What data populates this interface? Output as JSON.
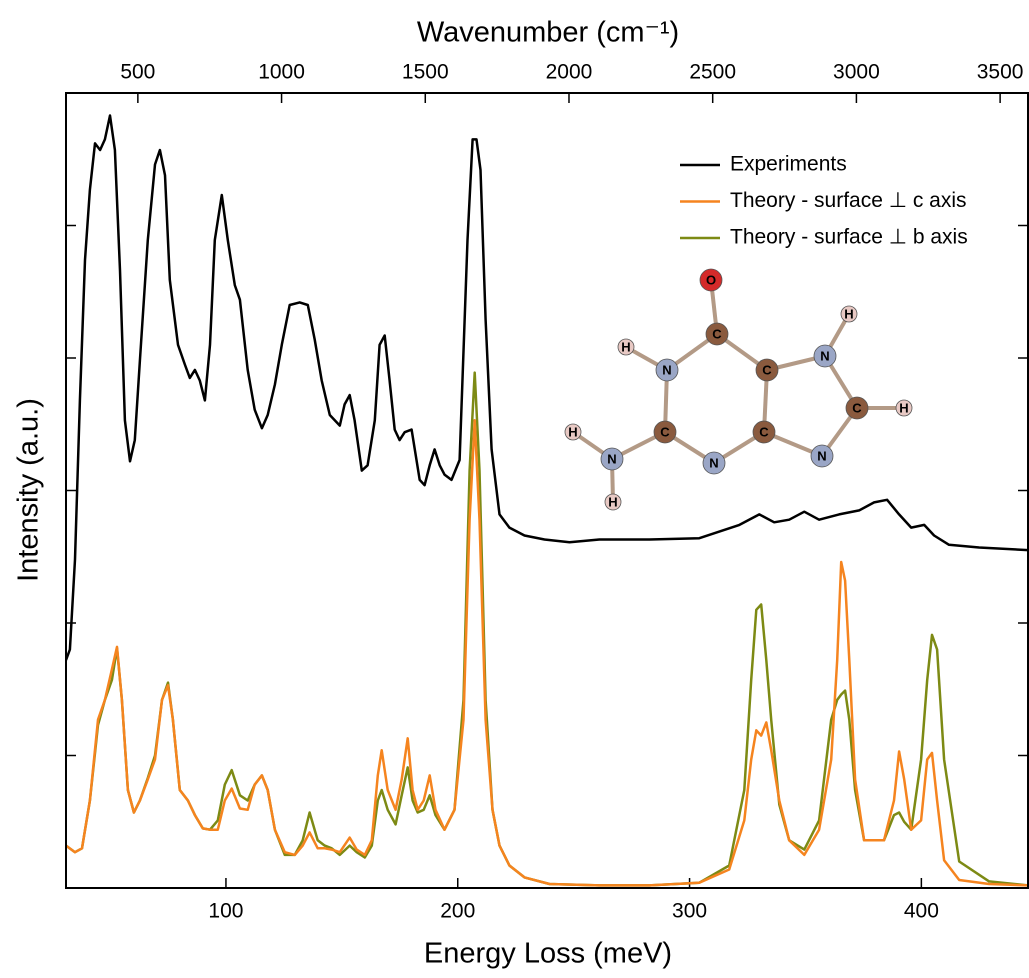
{
  "chart_data": {
    "type": "line",
    "xlabel": "Energy Loss (meV)",
    "ylabel": "Intensity (a.u.)",
    "x2label": "Wavenumber (cm⁻¹)",
    "xlim": [
      31,
      446
    ],
    "xticks": [
      100,
      200,
      300,
      400
    ],
    "x2lim": [
      250,
      3597
    ],
    "x2ticks": [
      500,
      1000,
      1500,
      2000,
      2500,
      3000,
      3500
    ],
    "ylim": [
      0,
      6
    ],
    "yticks": [
      1,
      2,
      3,
      4,
      5
    ],
    "legend": "upper right",
    "series": [
      {
        "name": "Experiments",
        "color": "#000000",
        "x": [
          31.0,
          32.7,
          34.9,
          37.0,
          39.2,
          41.3,
          43.5,
          45.7,
          47.8,
          50.0,
          52.1,
          54.3,
          56.4,
          58.6,
          60.7,
          62.9,
          66.3,
          69.4,
          71.5,
          73.7,
          75.8,
          79.3,
          82.3,
          84.4,
          86.6,
          88.7,
          90.9,
          93.1,
          95.2,
          98.2,
          100.8,
          103.8,
          106.0,
          109.4,
          112.4,
          115.5,
          118.0,
          121.1,
          124.1,
          127.5,
          131.8,
          135.3,
          138.3,
          141.3,
          144.8,
          149.1,
          151.2,
          153.4,
          155.5,
          158.6,
          161.1,
          164.2,
          166.3,
          168.5,
          170.6,
          172.8,
          174.9,
          177.1,
          180.1,
          183.6,
          185.7,
          187.9,
          190.0,
          192.2,
          194.3,
          197.3,
          200.8,
          204.2,
          206.4,
          208.1,
          209.8,
          212.0,
          214.6,
          218.0,
          222.3,
          228.8,
          237.4,
          248.2,
          261.1,
          282.7,
          304.2,
          321.5,
          330.1,
          336.5,
          343.0,
          349.5,
          355.9,
          364.5,
          373.2,
          379.6,
          385.2,
          390.4,
          395.6,
          401.2,
          405.5,
          411.9,
          424.9,
          446.0
        ],
        "values": [
          1.72,
          1.8,
          2.48,
          3.68,
          4.74,
          5.27,
          5.62,
          5.57,
          5.65,
          5.83,
          5.57,
          4.66,
          3.53,
          3.22,
          3.38,
          3.98,
          4.89,
          5.46,
          5.57,
          5.38,
          4.59,
          4.1,
          3.95,
          3.85,
          3.91,
          3.83,
          3.68,
          4.1,
          4.89,
          5.23,
          4.89,
          4.55,
          4.44,
          3.91,
          3.61,
          3.47,
          3.57,
          3.8,
          4.1,
          4.4,
          4.42,
          4.4,
          4.14,
          3.83,
          3.57,
          3.49,
          3.65,
          3.72,
          3.53,
          3.15,
          3.19,
          3.53,
          4.1,
          4.17,
          3.83,
          3.46,
          3.38,
          3.44,
          3.46,
          3.08,
          3.04,
          3.19,
          3.31,
          3.19,
          3.12,
          3.08,
          3.23,
          4.89,
          5.65,
          5.65,
          5.42,
          4.29,
          3.31,
          2.82,
          2.72,
          2.66,
          2.63,
          2.61,
          2.63,
          2.63,
          2.64,
          2.74,
          2.82,
          2.76,
          2.78,
          2.84,
          2.78,
          2.82,
          2.85,
          2.91,
          2.93,
          2.82,
          2.72,
          2.74,
          2.66,
          2.59,
          2.57,
          2.55
        ]
      },
      {
        "name": "Theory - surface ⊥ c axis",
        "color": "#f5841f",
        "x": [
          31.0,
          34.9,
          37.9,
          41.3,
          44.8,
          47.8,
          50.8,
          53.0,
          55.1,
          57.7,
          60.3,
          62.9,
          66.3,
          69.4,
          72.4,
          75.0,
          77.1,
          80.1,
          83.6,
          86.6,
          90.0,
          93.1,
          96.5,
          99.5,
          102.5,
          106.0,
          109.4,
          112.4,
          115.5,
          118.0,
          121.1,
          125.4,
          129.7,
          133.1,
          136.1,
          139.6,
          142.6,
          145.6,
          149.1,
          153.4,
          156.4,
          159.9,
          162.9,
          165.5,
          167.2,
          169.8,
          173.2,
          175.8,
          178.4,
          180.5,
          182.7,
          185.3,
          187.9,
          190.4,
          194.3,
          198.6,
          202.5,
          205.1,
          207.3,
          209.4,
          212.0,
          215.0,
          218.0,
          222.3,
          228.8,
          239.6,
          261.1,
          282.7,
          304.2,
          317.1,
          323.6,
          326.6,
          328.8,
          330.9,
          333.1,
          335.2,
          338.7,
          343.0,
          349.5,
          355.9,
          361.1,
          363.7,
          365.4,
          367.1,
          368.9,
          371.4,
          375.3,
          383.9,
          388.2,
          390.4,
          392.6,
          395.6,
          399.9,
          402.5,
          404.6,
          406.8,
          409.8,
          416.3,
          429.2,
          446.0
        ],
        "values": [
          0.32,
          0.27,
          0.3,
          0.66,
          1.27,
          1.42,
          1.65,
          1.82,
          1.42,
          0.74,
          0.57,
          0.66,
          0.82,
          0.97,
          1.42,
          1.53,
          1.27,
          0.74,
          0.66,
          0.55,
          0.45,
          0.44,
          0.44,
          0.66,
          0.75,
          0.6,
          0.59,
          0.78,
          0.85,
          0.74,
          0.44,
          0.27,
          0.25,
          0.32,
          0.42,
          0.3,
          0.3,
          0.29,
          0.27,
          0.38,
          0.29,
          0.25,
          0.36,
          0.85,
          1.04,
          0.74,
          0.59,
          0.82,
          1.13,
          0.74,
          0.59,
          0.66,
          0.85,
          0.59,
          0.44,
          0.59,
          1.27,
          2.78,
          3.53,
          2.78,
          1.27,
          0.59,
          0.32,
          0.17,
          0.08,
          0.03,
          0.02,
          0.02,
          0.04,
          0.14,
          0.51,
          0.97,
          1.19,
          1.15,
          1.25,
          1.04,
          0.66,
          0.36,
          0.25,
          0.44,
          0.97,
          1.72,
          2.46,
          2.32,
          1.72,
          0.82,
          0.36,
          0.36,
          0.66,
          1.03,
          0.82,
          0.44,
          0.51,
          0.97,
          1.02,
          0.66,
          0.21,
          0.06,
          0.03,
          0.02
        ]
      },
      {
        "name": "Theory - surface ⊥ b axis",
        "color": "#7d8a14",
        "x": [
          31.0,
          34.9,
          37.9,
          41.3,
          44.8,
          47.8,
          50.8,
          53.0,
          55.1,
          57.7,
          60.3,
          62.9,
          66.3,
          69.4,
          72.4,
          75.0,
          77.1,
          80.1,
          83.6,
          86.6,
          90.0,
          93.1,
          96.5,
          99.5,
          102.5,
          106.0,
          109.4,
          112.4,
          115.5,
          118.0,
          121.1,
          125.4,
          129.7,
          133.1,
          136.1,
          139.6,
          142.6,
          145.6,
          149.1,
          153.4,
          156.4,
          159.9,
          162.9,
          165.5,
          167.2,
          169.8,
          173.2,
          175.8,
          178.4,
          180.5,
          182.7,
          185.3,
          187.9,
          190.4,
          194.3,
          198.6,
          202.5,
          205.1,
          207.3,
          209.4,
          212.0,
          215.0,
          218.0,
          222.3,
          228.8,
          239.6,
          261.1,
          282.7,
          304.2,
          317.1,
          323.6,
          326.6,
          328.8,
          330.9,
          333.1,
          335.2,
          338.7,
          343.0,
          349.5,
          355.9,
          361.1,
          363.7,
          365.4,
          367.1,
          368.9,
          371.4,
          375.3,
          383.9,
          388.2,
          390.4,
          392.6,
          395.6,
          399.9,
          402.5,
          404.6,
          406.8,
          409.8,
          416.3,
          429.2,
          446.0
        ],
        "values": [
          0.32,
          0.27,
          0.3,
          0.66,
          1.23,
          1.42,
          1.57,
          1.81,
          1.42,
          0.74,
          0.57,
          0.66,
          0.83,
          1.0,
          1.42,
          1.55,
          1.27,
          0.74,
          0.66,
          0.55,
          0.45,
          0.44,
          0.51,
          0.78,
          0.89,
          0.7,
          0.66,
          0.78,
          0.85,
          0.74,
          0.44,
          0.25,
          0.25,
          0.36,
          0.57,
          0.36,
          0.32,
          0.3,
          0.25,
          0.32,
          0.27,
          0.23,
          0.32,
          0.66,
          0.74,
          0.59,
          0.48,
          0.7,
          0.91,
          0.66,
          0.57,
          0.59,
          0.7,
          0.55,
          0.44,
          0.59,
          1.42,
          3.15,
          3.89,
          3.15,
          1.42,
          0.59,
          0.32,
          0.17,
          0.08,
          0.03,
          0.02,
          0.02,
          0.04,
          0.17,
          0.74,
          1.57,
          2.1,
          2.14,
          1.72,
          1.27,
          0.63,
          0.36,
          0.29,
          0.51,
          1.27,
          1.42,
          1.46,
          1.49,
          1.27,
          0.74,
          0.36,
          0.36,
          0.55,
          0.57,
          0.5,
          0.44,
          0.97,
          1.57,
          1.91,
          1.8,
          0.97,
          0.2,
          0.05,
          0.02
        ]
      }
    ]
  },
  "molecule": {
    "atoms": [
      "O",
      "C",
      "N",
      "H",
      "C",
      "N",
      "H",
      "H",
      "N",
      "C",
      "C",
      "N",
      "H",
      "C",
      "H",
      "N"
    ]
  }
}
